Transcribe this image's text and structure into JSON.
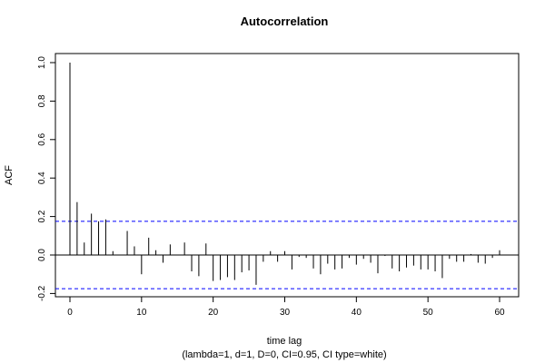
{
  "chart_data": {
    "type": "bar",
    "title": "Autocorrelation",
    "xlabel": "time lag",
    "subtitle": "(lambda=1, d=1, D=0, CI=0.95, CI type=white)",
    "ylabel": "ACF",
    "xlim": [
      -2,
      62
    ],
    "ylim": [
      -0.2,
      1.0
    ],
    "x_ticks": [
      0,
      10,
      20,
      30,
      40,
      50,
      60
    ],
    "y_ticks": [
      -0.2,
      0.0,
      0.2,
      0.4,
      0.6,
      0.8,
      1.0
    ],
    "y_tick_labels": [
      "-0.2",
      "0.0",
      "0.2",
      "0.4",
      "0.6",
      "0.8",
      "1.0"
    ],
    "confidence_interval": {
      "upper": 0.175,
      "lower": -0.175,
      "color": "#0000ff"
    },
    "grid": false,
    "lags": [
      0,
      1,
      2,
      3,
      4,
      5,
      6,
      7,
      8,
      9,
      10,
      11,
      12,
      13,
      14,
      15,
      16,
      17,
      18,
      19,
      20,
      21,
      22,
      23,
      24,
      25,
      26,
      27,
      28,
      29,
      30,
      31,
      32,
      33,
      34,
      35,
      36,
      37,
      38,
      39,
      40,
      41,
      42,
      43,
      44,
      45,
      46,
      47,
      48,
      49,
      50,
      51,
      52,
      53,
      54,
      55,
      56,
      57,
      58,
      59,
      60
    ],
    "values": [
      1.0,
      0.275,
      0.065,
      0.215,
      0.175,
      0.185,
      0.02,
      0.0,
      0.125,
      0.045,
      -0.1,
      0.09,
      0.025,
      -0.04,
      0.055,
      0.0,
      0.065,
      -0.085,
      -0.11,
      0.06,
      -0.135,
      -0.13,
      -0.115,
      -0.13,
      -0.09,
      -0.08,
      -0.155,
      -0.035,
      0.02,
      -0.035,
      0.02,
      -0.075,
      -0.01,
      -0.015,
      -0.07,
      -0.1,
      -0.045,
      -0.075,
      -0.07,
      -0.015,
      -0.05,
      -0.02,
      -0.04,
      -0.095,
      -0.005,
      -0.07,
      -0.085,
      -0.065,
      -0.055,
      -0.075,
      -0.075,
      -0.085,
      -0.12,
      -0.02,
      -0.035,
      -0.035,
      0.005,
      -0.04,
      -0.045,
      -0.015,
      0.025
    ]
  }
}
